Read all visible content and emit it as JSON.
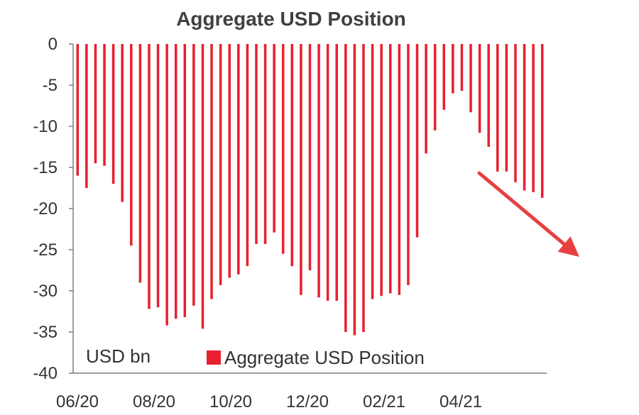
{
  "chart_data": {
    "type": "bar",
    "title": "Aggregate USD Position",
    "unit_label": "USD bn",
    "legend": [
      "Aggregate USD Position"
    ],
    "ylim": [
      -40,
      0
    ],
    "yticks": [
      0,
      -5,
      -10,
      -15,
      -20,
      -25,
      -30,
      -35,
      -40
    ],
    "x_tick_labels": [
      "06/20",
      "08/20",
      "10/20",
      "12/20",
      "02/21",
      "04/21"
    ],
    "series": [
      {
        "name": "Aggregate USD Position",
        "values": [
          -16.0,
          -17.5,
          -14.5,
          -14.8,
          -17.0,
          -19.2,
          -24.5,
          -29.0,
          -32.2,
          -32.0,
          -34.2,
          -33.4,
          -33.2,
          -31.8,
          -34.6,
          -31.0,
          -29.3,
          -28.4,
          -28.0,
          -27.0,
          -24.3,
          -24.3,
          -22.9,
          -25.5,
          -27.0,
          -30.5,
          -27.5,
          -30.8,
          -31.2,
          -31.2,
          -35.0,
          -35.4,
          -35.0,
          -31.0,
          -30.6,
          -30.3,
          -30.5,
          -29.3,
          -23.5,
          -13.3,
          -10.5,
          -8.0,
          -6.0,
          -5.7,
          -8.3,
          -10.8,
          -12.5,
          -15.5,
          -15.5,
          -16.8,
          -17.8,
          -18.0,
          -18.7
        ],
        "color": "#e8202f"
      }
    ],
    "annotation": {
      "type": "arrow",
      "direction": "down-right",
      "color": "#e84040"
    }
  }
}
